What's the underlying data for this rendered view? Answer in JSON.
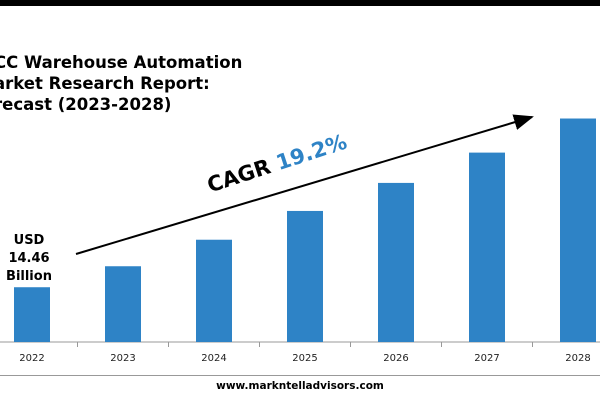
{
  "report": {
    "title_lines": [
      "CC Warehouse Automation",
      "arket Research Report:",
      "recast (2023-2028)"
    ],
    "cagr_label": "CAGR",
    "cagr_value": "19.2%",
    "first_value_lines": [
      "USD",
      "14.46",
      "Billion"
    ],
    "website": "www.markntelladvisors.com"
  },
  "colors": {
    "bar": "#2e83c6",
    "cagr_accent": "#2e83c6",
    "text": "#000000",
    "axis": "#999999"
  },
  "chart_data": {
    "type": "bar",
    "categories": [
      "2022",
      "2023",
      "2024",
      "2025",
      "2026",
      "2027",
      "2028"
    ],
    "values": [
      14.46,
      20.0,
      27.0,
      34.6,
      42.0,
      50.0,
      59.0
    ],
    "ylim": [
      0,
      66
    ],
    "value_labels": [
      "USD 14.46 Billion"
    ],
    "title": "",
    "xlabel": "",
    "ylabel": "",
    "grid": false,
    "legend": "none"
  }
}
